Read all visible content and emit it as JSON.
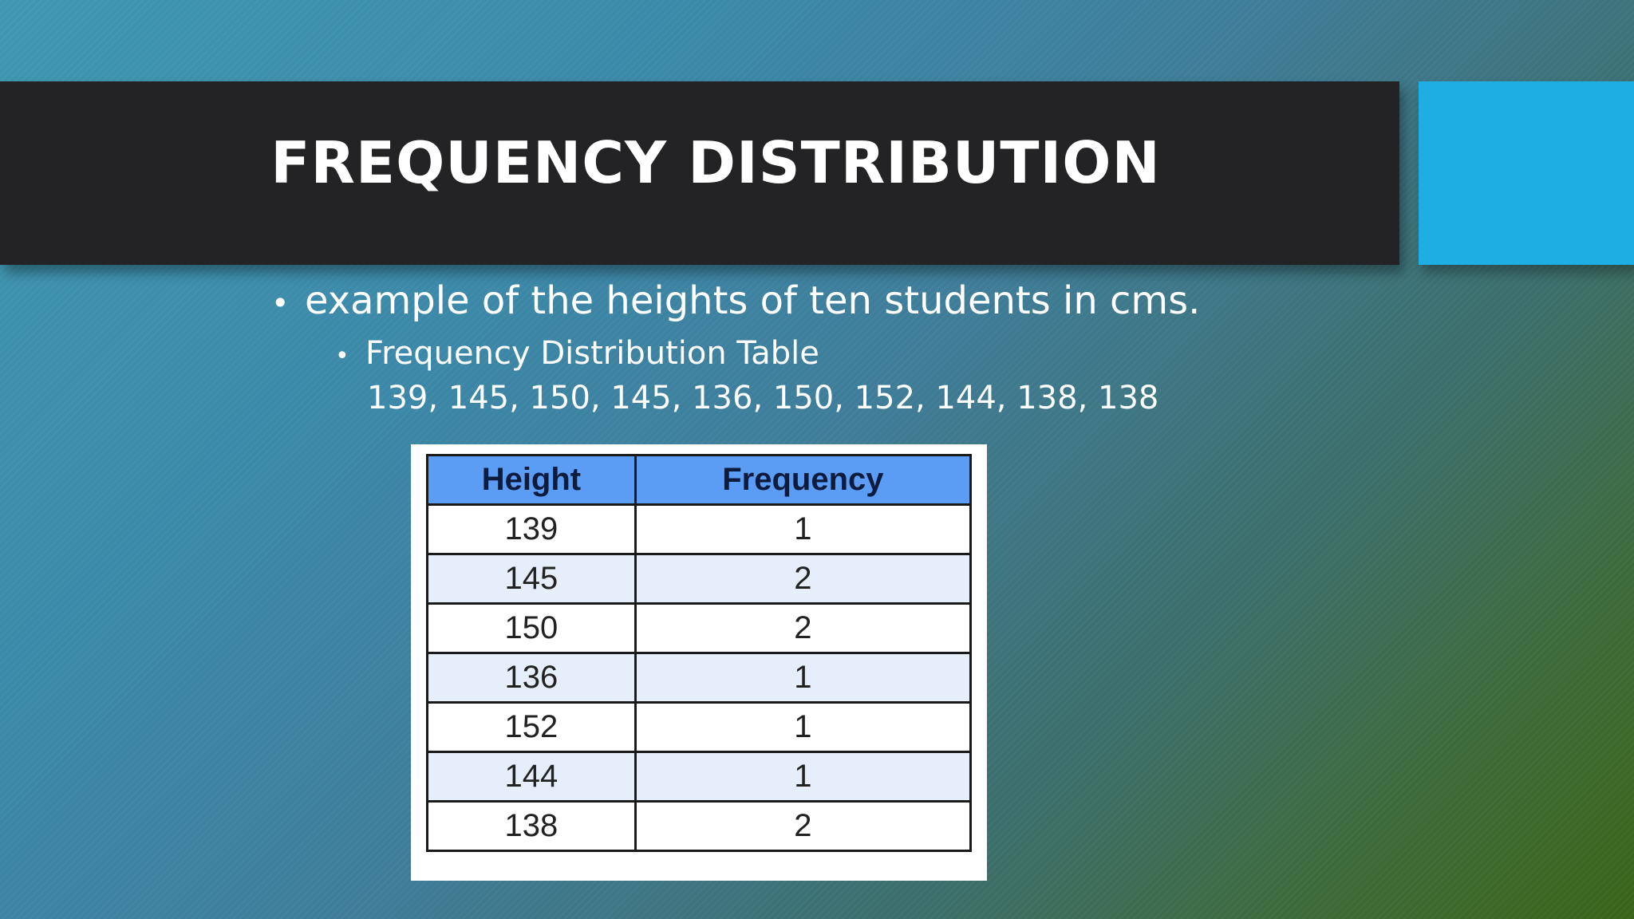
{
  "slide": {
    "title": "FREQUENCY DISTRIBUTION",
    "bullet_main": "example of the heights of ten students in cms.",
    "bullet_sub": "Frequency Distribution Table",
    "data_values": "139, 145, 150, 145, 136, 150, 152, 144, 138, 138",
    "bullet_glyph": "•",
    "accent_color": "#1faee3",
    "title_bar_color": "#232326"
  },
  "table": {
    "headers": [
      "Height",
      "Frequency"
    ],
    "rows": [
      [
        "139",
        "1"
      ],
      [
        "145",
        "2"
      ],
      [
        "150",
        "2"
      ],
      [
        "136",
        "1"
      ],
      [
        "152",
        "1"
      ],
      [
        "144",
        "1"
      ],
      [
        "138",
        "2"
      ]
    ],
    "header_color": "#5b9cf5"
  }
}
